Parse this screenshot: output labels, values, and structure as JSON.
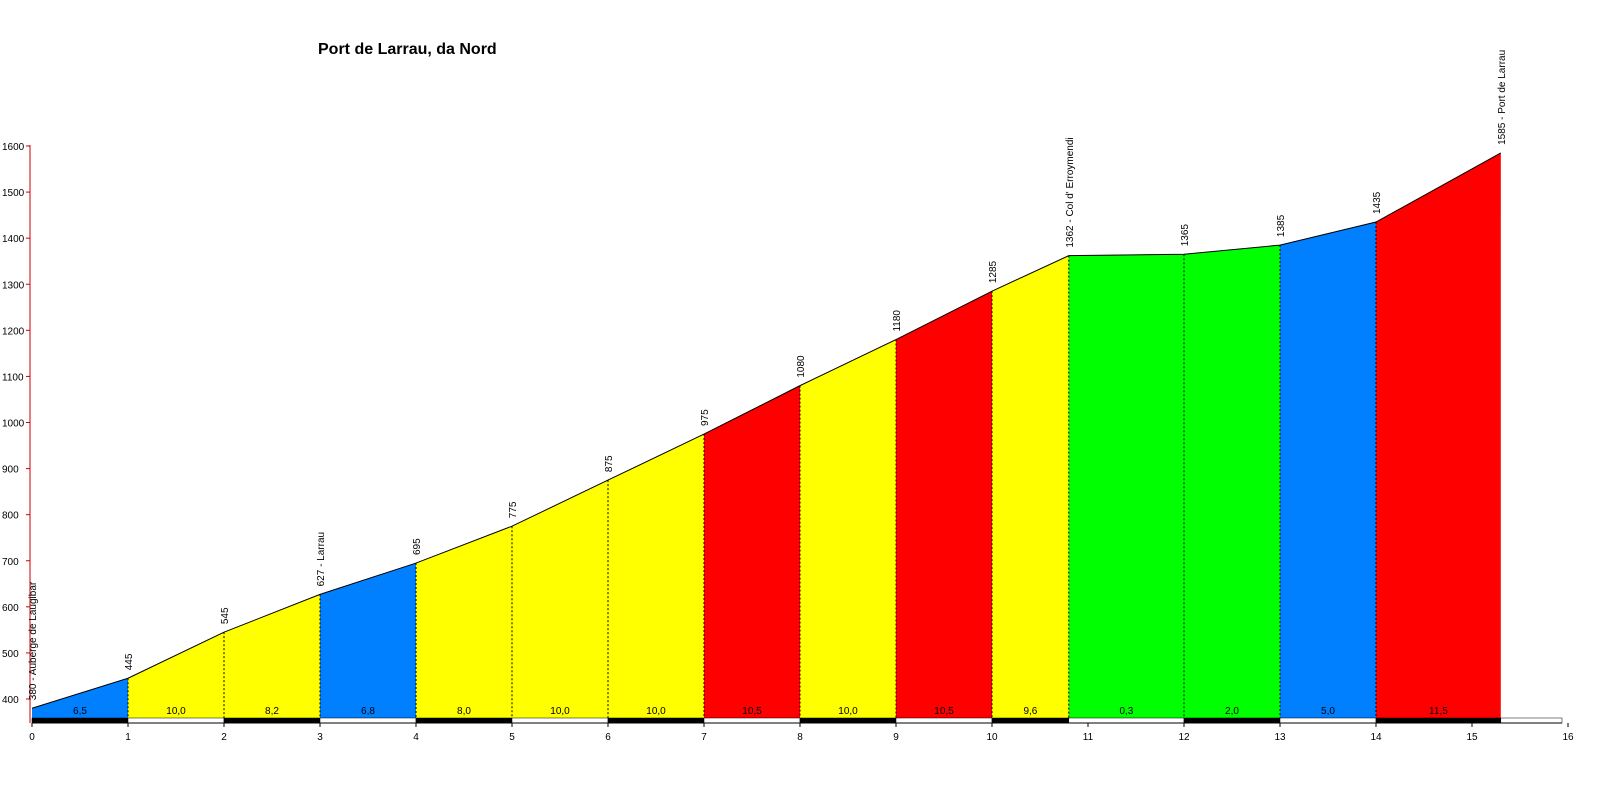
{
  "chart_data": {
    "type": "area",
    "title": "Port de Larrau, da Nord",
    "xlabel": "",
    "ylabel": "",
    "xlim": [
      0,
      16
    ],
    "ylim": [
      360,
      1600
    ],
    "x_ticks": [
      0,
      1,
      2,
      3,
      4,
      5,
      6,
      7,
      8,
      9,
      10,
      11,
      12,
      13,
      14,
      15,
      16
    ],
    "y_ticks": [
      400,
      500,
      600,
      700,
      800,
      900,
      1000,
      1100,
      1200,
      1300,
      1400,
      1500,
      1600
    ],
    "grid": false,
    "profile": [
      {
        "km": 0,
        "alt": 380
      },
      {
        "km": 1,
        "alt": 445
      },
      {
        "km": 2,
        "alt": 545
      },
      {
        "km": 3,
        "alt": 627
      },
      {
        "km": 4,
        "alt": 695
      },
      {
        "km": 5,
        "alt": 775
      },
      {
        "km": 6,
        "alt": 875
      },
      {
        "km": 7,
        "alt": 975
      },
      {
        "km": 8,
        "alt": 1080
      },
      {
        "km": 9,
        "alt": 1180
      },
      {
        "km": 10,
        "alt": 1285
      },
      {
        "km": 10.8,
        "alt": 1362
      },
      {
        "km": 12,
        "alt": 1365
      },
      {
        "km": 13,
        "alt": 1385
      },
      {
        "km": 14,
        "alt": 1435
      },
      {
        "km": 15.3,
        "alt": 1585
      }
    ],
    "segments": [
      {
        "from": 0,
        "to": 1,
        "gradient": "6,5",
        "color": "#0080ff"
      },
      {
        "from": 1,
        "to": 2,
        "gradient": "10,0",
        "color": "#ffff00"
      },
      {
        "from": 2,
        "to": 3,
        "gradient": "8,2",
        "color": "#ffff00"
      },
      {
        "from": 3,
        "to": 4,
        "gradient": "6,8",
        "color": "#0080ff"
      },
      {
        "from": 4,
        "to": 5,
        "gradient": "8,0",
        "color": "#ffff00"
      },
      {
        "from": 5,
        "to": 6,
        "gradient": "10,0",
        "color": "#ffff00"
      },
      {
        "from": 6,
        "to": 7,
        "gradient": "10,0",
        "color": "#ffff00"
      },
      {
        "from": 7,
        "to": 8,
        "gradient": "10,5",
        "color": "#ff0000"
      },
      {
        "from": 8,
        "to": 9,
        "gradient": "10,0",
        "color": "#ffff00"
      },
      {
        "from": 9,
        "to": 10,
        "gradient": "10,5",
        "color": "#ff0000"
      },
      {
        "from": 10,
        "to": 10.8,
        "gradient": "9,6",
        "color": "#ffff00"
      },
      {
        "from": 10.8,
        "to": 12,
        "gradient": "0,3",
        "color": "#00ff00"
      },
      {
        "from": 12,
        "to": 13,
        "gradient": "2,0",
        "color": "#00ff00"
      },
      {
        "from": 13,
        "to": 14,
        "gradient": "5,0",
        "color": "#0080ff"
      },
      {
        "from": 14,
        "to": 15.3,
        "gradient": "11,5",
        "color": "#ff0000"
      }
    ],
    "point_labels": [
      {
        "km": 0,
        "text": "380 - Auberge de Laugibar"
      },
      {
        "km": 1,
        "text": "445"
      },
      {
        "km": 2,
        "text": "545"
      },
      {
        "km": 3,
        "text": "627 - Larrau"
      },
      {
        "km": 4,
        "text": "695"
      },
      {
        "km": 5,
        "text": "775"
      },
      {
        "km": 6,
        "text": "875"
      },
      {
        "km": 7,
        "text": "975"
      },
      {
        "km": 8,
        "text": "1080"
      },
      {
        "km": 9,
        "text": "1180"
      },
      {
        "km": 10,
        "text": "1285"
      },
      {
        "km": 10.8,
        "text": "1362 - Col d' Erroymendi"
      },
      {
        "km": 12,
        "text": "1365"
      },
      {
        "km": 13,
        "text": "1385"
      },
      {
        "km": 14,
        "text": "1435"
      },
      {
        "km": 15.3,
        "text": "1585 - Port de Larrau"
      }
    ],
    "colors": {
      "blue": "#0080ff",
      "yellow": "#ffff00",
      "red": "#ff0000",
      "green": "#00ff00",
      "axis": "#000000",
      "y_axis": "#cc0000"
    }
  }
}
